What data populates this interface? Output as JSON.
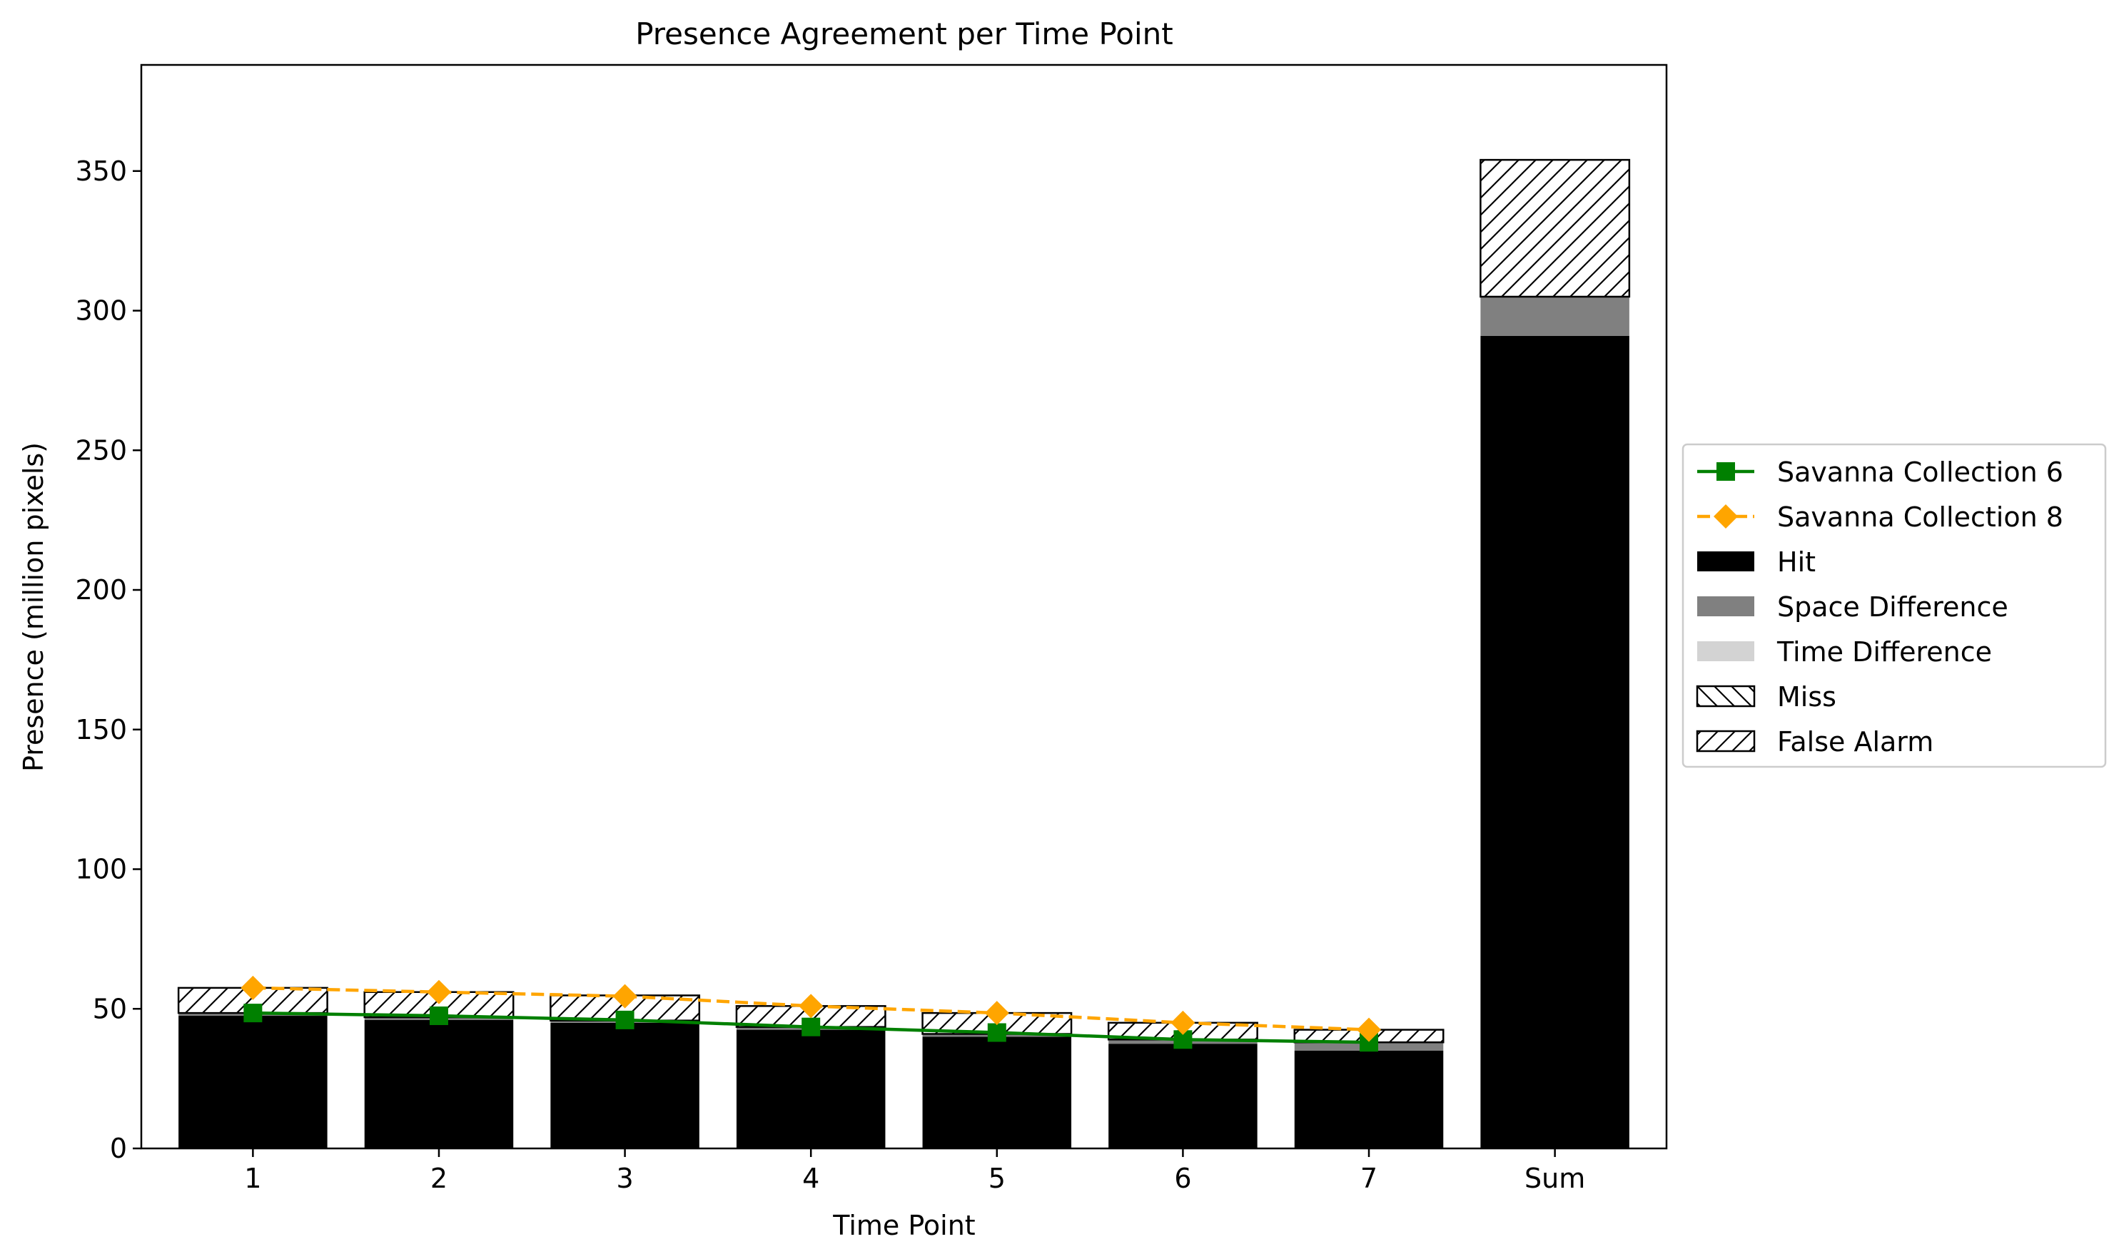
{
  "chart_data": {
    "type": "bar",
    "title": "Presence Agreement per Time Point",
    "xlabel": "Time Point",
    "ylabel": "Presence (million pixels)",
    "ylim": [
      0,
      388
    ],
    "yticks": [
      0,
      50,
      100,
      150,
      200,
      250,
      300,
      350
    ],
    "categories": [
      "1",
      "2",
      "3",
      "4",
      "5",
      "6",
      "7",
      "Sum"
    ],
    "stacked": true,
    "bar_series": [
      {
        "name": "Hit",
        "color": "#000000",
        "hatch": "none",
        "values": [
          47.5,
          46,
          45,
          42.5,
          40,
          37.5,
          35,
          291
        ]
      },
      {
        "name": "Space Difference",
        "color": "#808080",
        "hatch": "none",
        "values": [
          1,
          1,
          0.8,
          1,
          1,
          1.5,
          3,
          14
        ]
      },
      {
        "name": "Time Difference",
        "color": "#d3d3d3",
        "hatch": "none",
        "values": [
          0,
          0,
          0,
          0,
          0,
          0,
          0,
          0
        ]
      },
      {
        "name": "Miss",
        "color": "#ffffff",
        "hatch": "backslash",
        "values": [
          0,
          0,
          0,
          0,
          0,
          0,
          0,
          0
        ]
      },
      {
        "name": "False Alarm",
        "color": "#ffffff",
        "hatch": "slash",
        "values": [
          9,
          9,
          9,
          7.5,
          7.5,
          6,
          4.5,
          49
        ]
      }
    ],
    "line_series": [
      {
        "name": "Savanna Collection 6",
        "color": "#008000",
        "marker": "square",
        "linestyle": "solid",
        "values": [
          48.5,
          47.5,
          46,
          43.5,
          41.5,
          39,
          38
        ]
      },
      {
        "name": "Savanna Collection 8",
        "color": "#ffa500",
        "marker": "diamond",
        "linestyle": "dashed",
        "values": [
          57.5,
          56,
          54.5,
          51,
          48.5,
          45,
          42.5
        ]
      }
    ],
    "legend": {
      "placement": "right",
      "entries": [
        "Savanna Collection 6",
        "Savanna Collection 8",
        "Hit",
        "Space Difference",
        "Time Difference",
        "Miss",
        "False Alarm"
      ]
    },
    "grid": false
  }
}
